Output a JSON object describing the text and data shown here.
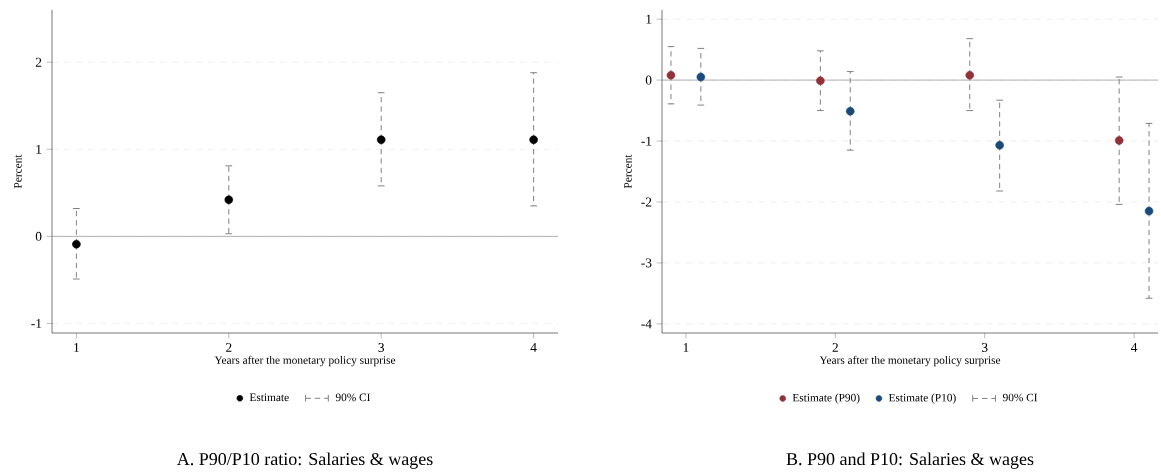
{
  "chart_data": [
    {
      "type": "scatter",
      "title": "A. P90/P10 ratio: Salaries & wages",
      "xlabel": "Years after the monetary policy surprise",
      "ylabel": "Percent",
      "xlim": [
        0.84,
        4.16
      ],
      "xticks": [
        1,
        2,
        3,
        4
      ],
      "ylim": [
        -1.11,
        2.6
      ],
      "yticks": [
        -1,
        0,
        1,
        2
      ],
      "grid": "y",
      "legend": "bottom",
      "marker": "circle",
      "annotations": [
        "90% CI"
      ],
      "ref_lines": [
        {
          "axis": "y",
          "value": 0,
          "color": "#a0a0a0"
        }
      ],
      "series": [
        {
          "name": "Estimate",
          "color": "#000000",
          "x": [
            1,
            2,
            3,
            4
          ],
          "values": [
            -0.09,
            0.42,
            1.11,
            1.11
          ],
          "errors": [
            [
              -0.49,
              0.32
            ],
            [
              0.03,
              0.81
            ],
            [
              0.58,
              1.65
            ],
            [
              0.35,
              1.88
            ]
          ]
        }
      ]
    },
    {
      "type": "scatter",
      "title": "B. P90 and P10: Salaries & wages",
      "xlabel": "Years after the monetary policy surprise",
      "ylabel": "Percent",
      "xlim": [
        0.84,
        4.16
      ],
      "xticks": [
        1,
        2,
        3,
        4
      ],
      "ylim": [
        -4.15,
        1.15
      ],
      "yticks": [
        -4,
        -3,
        -2,
        -1,
        0,
        1
      ],
      "grid": "y",
      "legend": "bottom",
      "marker": "circle",
      "annotations": [
        "90% CI"
      ],
      "ref_lines": [
        {
          "axis": "y",
          "value": 0,
          "color": "#a0a0a0"
        }
      ],
      "series": [
        {
          "name": "Estimate (P90)",
          "color": "#93313a",
          "x": [
            0.9,
            1.9,
            2.9,
            3.9
          ],
          "values": [
            0.08,
            -0.01,
            0.08,
            -0.99
          ],
          "errors": [
            [
              -0.39,
              0.55
            ],
            [
              -0.5,
              0.48
            ],
            [
              -0.5,
              0.68
            ],
            [
              -2.04,
              0.05
            ]
          ]
        },
        {
          "name": "Estimate (P10)",
          "color": "#1a4a7a",
          "x": [
            1.1,
            2.1,
            3.1,
            4.1
          ],
          "values": [
            0.05,
            -0.51,
            -1.07,
            -2.15
          ],
          "errors": [
            [
              -0.41,
              0.52
            ],
            [
              -1.15,
              0.14
            ],
            [
              -1.82,
              -0.33
            ],
            [
              -3.58,
              -0.71
            ]
          ]
        }
      ]
    }
  ]
}
